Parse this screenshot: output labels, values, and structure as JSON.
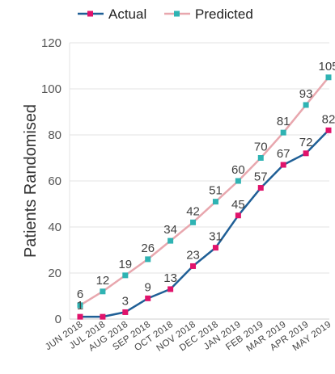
{
  "chart_data": {
    "type": "line",
    "title": "",
    "xlabel": "",
    "ylabel": "Patients Randomised",
    "ylim": [
      0,
      120
    ],
    "yticks": [
      0,
      20,
      40,
      60,
      80,
      100,
      120
    ],
    "grid": "horizontal",
    "legend_position": "top",
    "categories": [
      "JUN 2018",
      "JUL 2018",
      "AUG 2018",
      "SEP 2018",
      "OCT 2018",
      "NOV 2018",
      "DEC 2018",
      "JAN 2019",
      "FEB 2019",
      "MAR 2019",
      "APR 2019",
      "MAY 2019"
    ],
    "series": [
      {
        "name": "Actual",
        "color": "#1f5f96",
        "marker_color": "#e0136b",
        "values": [
          1,
          1,
          3,
          9,
          13,
          23,
          31,
          45,
          57,
          67,
          72,
          82
        ],
        "labels": [
          "1",
          "",
          "3",
          "9",
          "13",
          "23",
          "31",
          "45",
          "57",
          "67",
          "72",
          "82"
        ]
      },
      {
        "name": "Predicted",
        "color": "#e8a7ae",
        "marker_color": "#2fb3b3",
        "values": [
          6,
          12,
          19,
          26,
          34,
          42,
          51,
          60,
          70,
          81,
          93,
          105
        ],
        "labels": [
          "6",
          "12",
          "19",
          "26",
          "34",
          "42",
          "51",
          "60",
          "70",
          "81",
          "93",
          "105"
        ]
      }
    ]
  }
}
